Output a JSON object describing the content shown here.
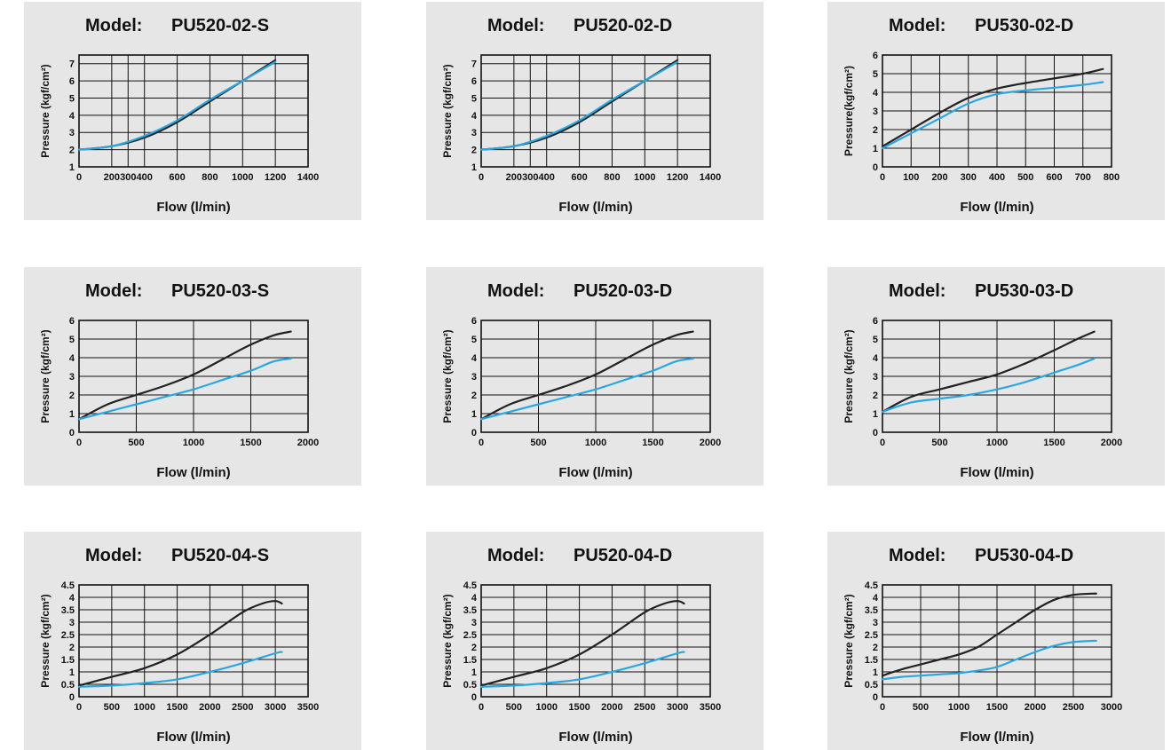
{
  "colors": {
    "panel_bg": "#e6e6e6",
    "line_dark": "#222222",
    "line_blue": "#29a8e0",
    "grid": "#111111"
  },
  "chart_data": [
    {
      "type": "line",
      "model_label": "Model:",
      "model": "PU520-02-S",
      "xlabel": "Flow (l/min)",
      "ylabel": "Pressure (kgf/cm²)",
      "xlim": [
        0,
        1400
      ],
      "ylim": [
        1,
        7.5
      ],
      "xticks": [
        0,
        200,
        300,
        400,
        600,
        800,
        1000,
        1200,
        1400
      ],
      "xtick_labels": [
        "0",
        "200",
        "300",
        "400",
        "600",
        "800",
        "1000",
        "1200",
        "1400"
      ],
      "yticks": [
        1,
        2,
        3,
        4,
        5,
        6,
        7
      ],
      "series": [
        {
          "x": [
            0,
            200,
            400,
            600,
            800,
            1000,
            1200
          ],
          "y": [
            2.0,
            2.2,
            2.7,
            3.6,
            4.8,
            6.0,
            7.2
          ]
        },
        {
          "x": [
            0,
            200,
            400,
            600,
            800,
            1000,
            1200
          ],
          "y": [
            2.0,
            2.2,
            2.8,
            3.7,
            4.9,
            6.0,
            7.1
          ]
        }
      ]
    },
    {
      "type": "line",
      "model_label": "Model:",
      "model": "PU520-02-D",
      "xlabel": "Flow (l/min)",
      "ylabel": "Pressure (kgf/cm²)",
      "xlim": [
        0,
        1400
      ],
      "ylim": [
        1,
        7.5
      ],
      "xticks": [
        0,
        200,
        300,
        400,
        600,
        800,
        1000,
        1200,
        1400
      ],
      "xtick_labels": [
        "0",
        "200",
        "300",
        "400",
        "600",
        "800",
        "1000",
        "1200",
        "1400"
      ],
      "yticks": [
        1,
        2,
        3,
        4,
        5,
        6,
        7
      ],
      "series": [
        {
          "x": [
            0,
            200,
            400,
            600,
            800,
            1000,
            1200
          ],
          "y": [
            2.0,
            2.2,
            2.7,
            3.6,
            4.8,
            6.0,
            7.2
          ]
        },
        {
          "x": [
            0,
            200,
            400,
            600,
            800,
            1000,
            1200
          ],
          "y": [
            2.0,
            2.2,
            2.8,
            3.7,
            4.9,
            6.0,
            7.1
          ]
        }
      ]
    },
    {
      "type": "line",
      "model_label": "Model:",
      "model": "PU530-02-D",
      "xlabel": "Flow (l/min)",
      "ylabel": "Pressure(kgf/cm²)",
      "xlim": [
        0,
        800
      ],
      "ylim": [
        0,
        6
      ],
      "xticks": [
        0,
        100,
        200,
        300,
        400,
        500,
        600,
        700,
        800
      ],
      "xtick_labels": [
        "0",
        "100",
        "200",
        "300",
        "400",
        "500",
        "600",
        "700",
        "800"
      ],
      "yticks": [
        0,
        1,
        2,
        3,
        4,
        5,
        6
      ],
      "series": [
        {
          "x": [
            0,
            100,
            200,
            300,
            400,
            500,
            600,
            700,
            770
          ],
          "y": [
            1.1,
            2.0,
            2.9,
            3.7,
            4.2,
            4.5,
            4.75,
            5.0,
            5.25
          ]
        },
        {
          "x": [
            0,
            100,
            200,
            300,
            400,
            500,
            600,
            700,
            770
          ],
          "y": [
            1.0,
            1.8,
            2.6,
            3.4,
            3.9,
            4.1,
            4.25,
            4.4,
            4.55
          ]
        }
      ]
    },
    {
      "type": "line",
      "model_label": "Model:",
      "model": "PU520-03-S",
      "xlabel": "Flow (l/min)",
      "ylabel": "Pressure (kgf/cm²)",
      "xlim": [
        0,
        2000
      ],
      "ylim": [
        0,
        6
      ],
      "xticks": [
        0,
        500,
        1000,
        1500,
        2000
      ],
      "xtick_labels": [
        "0",
        "500",
        "1000",
        "1500",
        "2000"
      ],
      "yticks": [
        0,
        1,
        2,
        3,
        4,
        5,
        6
      ],
      "series": [
        {
          "x": [
            0,
            250,
            500,
            750,
            1000,
            1250,
            1500,
            1700,
            1850
          ],
          "y": [
            0.7,
            1.5,
            2.0,
            2.5,
            3.1,
            3.9,
            4.7,
            5.2,
            5.4
          ]
        },
        {
          "x": [
            0,
            250,
            500,
            750,
            1000,
            1250,
            1500,
            1700,
            1850
          ],
          "y": [
            0.7,
            1.1,
            1.5,
            1.9,
            2.3,
            2.8,
            3.3,
            3.8,
            3.95
          ]
        }
      ]
    },
    {
      "type": "line",
      "model_label": "Model:",
      "model": "PU520-03-D",
      "xlabel": "Flow (l/min)",
      "ylabel": "Pressure (kgf/cm²)",
      "xlim": [
        0,
        2000
      ],
      "ylim": [
        0,
        6
      ],
      "xticks": [
        0,
        500,
        1000,
        1500,
        2000
      ],
      "xtick_labels": [
        "0",
        "500",
        "1000",
        "1500",
        "2000"
      ],
      "yticks": [
        0,
        1,
        2,
        3,
        4,
        5,
        6
      ],
      "series": [
        {
          "x": [
            0,
            250,
            500,
            750,
            1000,
            1250,
            1500,
            1700,
            1850
          ],
          "y": [
            0.7,
            1.5,
            2.0,
            2.5,
            3.1,
            3.9,
            4.7,
            5.2,
            5.4
          ]
        },
        {
          "x": [
            0,
            250,
            500,
            750,
            1000,
            1250,
            1500,
            1700,
            1850
          ],
          "y": [
            0.7,
            1.1,
            1.5,
            1.9,
            2.3,
            2.8,
            3.3,
            3.8,
            3.95
          ]
        }
      ]
    },
    {
      "type": "line",
      "model_label": "Model:",
      "model": "PU530-03-D",
      "xlabel": "Flow (l/min)",
      "ylabel": "Pressure (kgf/cm²)",
      "xlim": [
        0,
        2000
      ],
      "ylim": [
        0,
        6
      ],
      "xticks": [
        0,
        500,
        1000,
        1500,
        2000
      ],
      "xtick_labels": [
        "0",
        "500",
        "1000",
        "1500",
        "2000"
      ],
      "yticks": [
        0,
        1,
        2,
        3,
        4,
        5,
        6
      ],
      "series": [
        {
          "x": [
            0,
            250,
            500,
            750,
            1000,
            1250,
            1500,
            1700,
            1850
          ],
          "y": [
            1.1,
            1.9,
            2.3,
            2.7,
            3.1,
            3.7,
            4.4,
            5.0,
            5.4
          ]
        },
        {
          "x": [
            0,
            250,
            500,
            750,
            1000,
            1250,
            1500,
            1700,
            1850
          ],
          "y": [
            1.1,
            1.6,
            1.8,
            2.0,
            2.3,
            2.7,
            3.2,
            3.6,
            3.95
          ]
        }
      ]
    },
    {
      "type": "line",
      "model_label": "Model:",
      "model": "PU520-04-S",
      "xlabel": "Flow (l/min)",
      "ylabel": "Pressure (kgf/cm²)",
      "xlim": [
        0,
        3500
      ],
      "ylim": [
        0,
        4.5
      ],
      "xticks": [
        0,
        500,
        1000,
        1500,
        2000,
        2500,
        3000,
        3500
      ],
      "xtick_labels": [
        "0",
        "500",
        "1000",
        "1500",
        "2000",
        "2500",
        "3000",
        "3500"
      ],
      "yticks": [
        0,
        0.5,
        1,
        1.5,
        2,
        2.5,
        3,
        3.5,
        4,
        4.5
      ],
      "ytick_labels": [
        "0",
        "0.5",
        "1",
        "1.5",
        "2",
        "2.5",
        "3",
        "3.5",
        "4",
        "4.5"
      ],
      "series": [
        {
          "x": [
            0,
            500,
            1000,
            1500,
            2000,
            2500,
            2800,
            3000,
            3100
          ],
          "y": [
            0.45,
            0.8,
            1.15,
            1.7,
            2.5,
            3.4,
            3.75,
            3.85,
            3.75
          ]
        },
        {
          "x": [
            0,
            500,
            1000,
            1500,
            2000,
            2500,
            3000,
            3100
          ],
          "y": [
            0.4,
            0.45,
            0.55,
            0.7,
            1.0,
            1.35,
            1.75,
            1.8
          ]
        }
      ]
    },
    {
      "type": "line",
      "model_label": "Model:",
      "model": "PU520-04-D",
      "xlabel": "Flow (l/min)",
      "ylabel": "Pressure (kgf/cm²)",
      "xlim": [
        0,
        3500
      ],
      "ylim": [
        0,
        4.5
      ],
      "xticks": [
        0,
        500,
        1000,
        1500,
        2000,
        2500,
        3000,
        3500
      ],
      "xtick_labels": [
        "0",
        "500",
        "1000",
        "1500",
        "2000",
        "2500",
        "3000",
        "3500"
      ],
      "yticks": [
        0,
        0.5,
        1,
        1.5,
        2,
        2.5,
        3,
        3.5,
        4,
        4.5
      ],
      "ytick_labels": [
        "0",
        "0.5",
        "1",
        "1.5",
        "2",
        "2.5",
        "3",
        "3.5",
        "4",
        "4.5"
      ],
      "series": [
        {
          "x": [
            0,
            500,
            1000,
            1500,
            2000,
            2500,
            2800,
            3000,
            3100
          ],
          "y": [
            0.45,
            0.8,
            1.15,
            1.7,
            2.5,
            3.4,
            3.75,
            3.85,
            3.75
          ]
        },
        {
          "x": [
            0,
            500,
            1000,
            1500,
            2000,
            2500,
            3000,
            3100
          ],
          "y": [
            0.4,
            0.45,
            0.55,
            0.7,
            1.0,
            1.35,
            1.75,
            1.8
          ]
        }
      ]
    },
    {
      "type": "line",
      "model_label": "Model:",
      "model": "PU530-04-D",
      "xlabel": "Flow (l/min)",
      "ylabel": "Pressure (kgf/cm²)",
      "xlim": [
        0,
        3000
      ],
      "ylim": [
        0,
        4.5
      ],
      "xticks": [
        0,
        500,
        1000,
        1500,
        2000,
        2500,
        3000
      ],
      "xtick_labels": [
        "0",
        "500",
        "1000",
        "1500",
        "2000",
        "2500",
        "3000"
      ],
      "yticks": [
        0,
        0.5,
        1,
        1.5,
        2,
        2.5,
        3,
        3.5,
        4,
        4.5
      ],
      "ytick_labels": [
        "0",
        "0.5",
        "1",
        "1.5",
        "2",
        "2.5",
        "3",
        "3.5",
        "4",
        "4.5"
      ],
      "series": [
        {
          "x": [
            0,
            250,
            500,
            750,
            1000,
            1250,
            1500,
            1750,
            2000,
            2250,
            2500,
            2750,
            2800
          ],
          "y": [
            0.85,
            1.1,
            1.3,
            1.5,
            1.7,
            2.0,
            2.5,
            3.0,
            3.5,
            3.9,
            4.1,
            4.15,
            4.15
          ]
        },
        {
          "x": [
            0,
            250,
            500,
            750,
            1000,
            1250,
            1500,
            1750,
            2000,
            2250,
            2500,
            2750,
            2800
          ],
          "y": [
            0.7,
            0.8,
            0.85,
            0.9,
            0.95,
            1.05,
            1.2,
            1.5,
            1.8,
            2.05,
            2.2,
            2.25,
            2.25
          ]
        }
      ]
    }
  ]
}
